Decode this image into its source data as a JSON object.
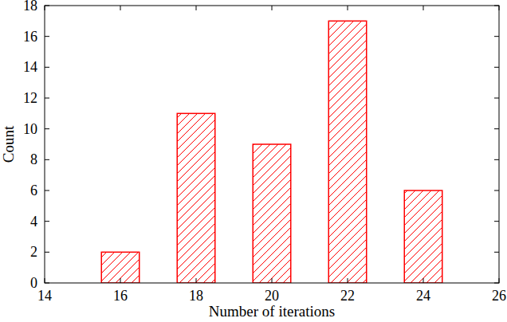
{
  "chart_data": {
    "type": "bar",
    "x_label": "Number of iterations",
    "y_label": "Count",
    "x": [
      16,
      18,
      20,
      22,
      24
    ],
    "values": [
      2,
      11,
      9,
      17,
      6
    ],
    "color": "#ff0000",
    "xlim": [
      14,
      26
    ],
    "xticks": [
      14,
      16,
      18,
      20,
      22,
      24,
      26
    ],
    "ylim": [
      0,
      18
    ],
    "yticks": [
      0,
      2,
      4,
      6,
      8,
      10,
      12,
      14,
      16,
      18
    ],
    "grid": false
  }
}
